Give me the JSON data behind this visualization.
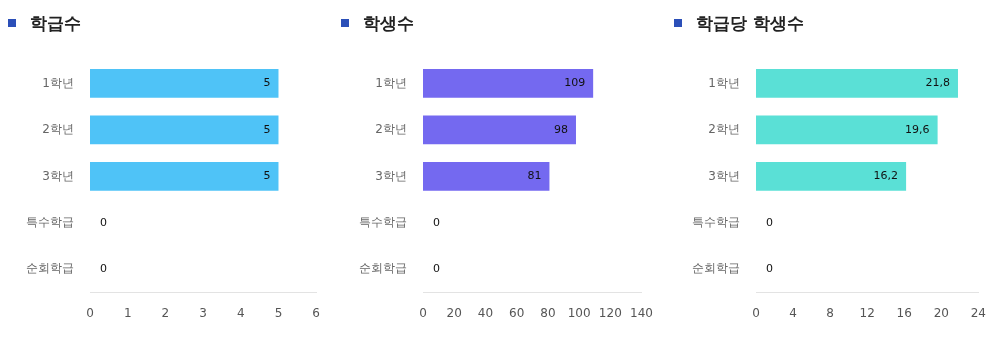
{
  "chart_data": [
    {
      "type": "bar",
      "orientation": "horizontal",
      "title": "학급수",
      "categories": [
        "1학년",
        "2학년",
        "3학년",
        "특수학급",
        "순회학급"
      ],
      "values": [
        5,
        5,
        5,
        0,
        0
      ],
      "value_labels": [
        "5",
        "5",
        "5",
        "0",
        "0"
      ],
      "color": "#4fc3f7",
      "xlim": [
        0,
        6
      ],
      "xticks": [
        0,
        1,
        2,
        3,
        4,
        5,
        6
      ]
    },
    {
      "type": "bar",
      "orientation": "horizontal",
      "title": "학생수",
      "categories": [
        "1학년",
        "2학년",
        "3학년",
        "특수학급",
        "순회학급"
      ],
      "values": [
        109,
        98,
        81,
        0,
        0
      ],
      "value_labels": [
        "109",
        "98",
        "81",
        "0",
        "0"
      ],
      "color": "#7469f0",
      "xlim": [
        0,
        140
      ],
      "xticks": [
        0,
        20,
        40,
        60,
        80,
        100,
        120,
        140
      ]
    },
    {
      "type": "bar",
      "orientation": "horizontal",
      "title": "학급당 학생수",
      "categories": [
        "1학년",
        "2학년",
        "3학년",
        "특수학급",
        "순회학급"
      ],
      "values": [
        21.8,
        19.6,
        16.2,
        0,
        0
      ],
      "value_labels": [
        "21,8",
        "19,6",
        "16,2",
        "0",
        "0"
      ],
      "color": "#5ae0d6",
      "xlim": [
        0,
        24
      ],
      "xticks": [
        0,
        4,
        8,
        12,
        16,
        20,
        24
      ]
    }
  ]
}
